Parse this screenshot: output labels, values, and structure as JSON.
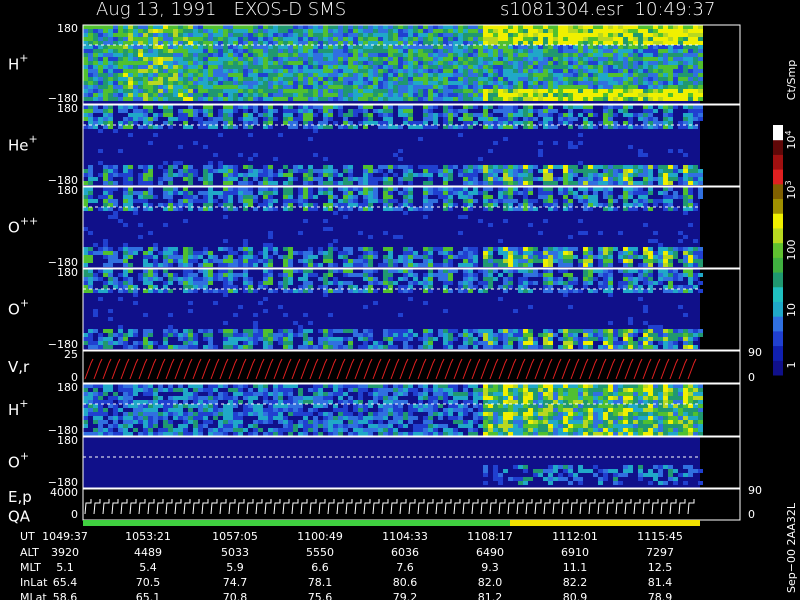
{
  "header": {
    "title": "Aug 13, 1991   EXOS-D SMS",
    "file": "s1081304.esr  10:49:37"
  },
  "panels": [
    {
      "label": "H",
      "sup": "+",
      "top": "180",
      "bottom": "−180"
    },
    {
      "label": "He",
      "sup": "+",
      "top": "180",
      "bottom": "−180"
    },
    {
      "label": "O",
      "sup": "++",
      "top": "180",
      "bottom": "−180"
    },
    {
      "label": "O",
      "sup": "+",
      "top": "180",
      "bottom": "−180"
    },
    {
      "label": "V,r",
      "top": "25",
      "bottom": "0",
      "right_top": "90",
      "right_bottom": "0"
    },
    {
      "label": "H",
      "sup": "+",
      "top": "180",
      "bottom": "−180"
    },
    {
      "label": "O",
      "sup": "+",
      "top": "180",
      "bottom": "−180"
    },
    {
      "label": "E,p",
      "label2": "QA",
      "top": "4000",
      "bottom": "0",
      "right_top": "90",
      "right_bottom": "0"
    }
  ],
  "colorbar": {
    "unit": "Ct/Smp",
    "labels": [
      {
        "text": "1"
      },
      {
        "text": "10"
      },
      {
        "text": "100"
      },
      {
        "text": "10",
        "sup": "3"
      },
      {
        "text": "10",
        "sup": "4"
      }
    ]
  },
  "footer": {
    "rows": [
      {
        "name": "UT",
        "values": [
          "1049:37",
          "1053:21",
          "1057:05",
          "1100:49",
          "1104:33",
          "1108:17",
          "1112:01",
          "1115:45"
        ]
      },
      {
        "name": "ALT",
        "values": [
          "3920",
          "4489",
          "5033",
          "5550",
          "6036",
          "6490",
          "6910",
          "7297"
        ]
      },
      {
        "name": "MLT",
        "values": [
          "5.1",
          "5.4",
          "5.9",
          "6.6",
          "7.6",
          "9.3",
          "11.1",
          "12.5"
        ]
      },
      {
        "name": "InLat",
        "values": [
          "65.4",
          "70.5",
          "74.7",
          "78.1",
          "80.6",
          "82.0",
          "82.2",
          "81.4"
        ]
      },
      {
        "name": "MLat",
        "values": [
          "58.6",
          "65.1",
          "70.8",
          "75.6",
          "79.2",
          "81.2",
          "80.9",
          "78.9"
        ]
      }
    ],
    "code": "Sep−00 2AA32L"
  }
}
